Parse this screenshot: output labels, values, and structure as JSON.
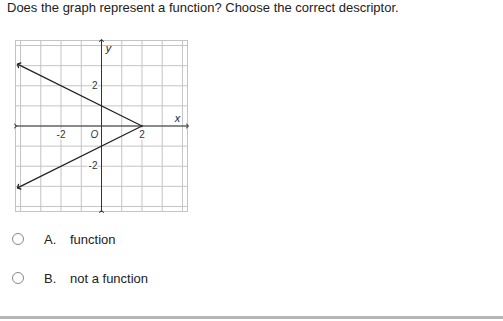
{
  "question": "Does the graph represent a function? Choose the correct descriptor.",
  "chart_data": {
    "type": "line",
    "x_label": "x",
    "y_label": "y",
    "origin_label": "O",
    "xlim": [
      -4.25,
      4.25
    ],
    "ylim": [
      -4.25,
      4.25
    ],
    "xticks": [
      -2,
      2
    ],
    "yticks": [
      -2,
      2
    ],
    "grid": true,
    "series": [
      {
        "x": [
          2,
          -4.1
        ],
        "values": [
          0,
          3.05
        ],
        "color": "#222222",
        "marker": "arrow"
      },
      {
        "x": [
          2,
          -4.1
        ],
        "values": [
          0,
          -3.05
        ],
        "color": "#222222",
        "marker": "arrow"
      }
    ]
  },
  "options": [
    {
      "letter": "A.",
      "text": "function"
    },
    {
      "letter": "B.",
      "text": "not a function"
    }
  ]
}
